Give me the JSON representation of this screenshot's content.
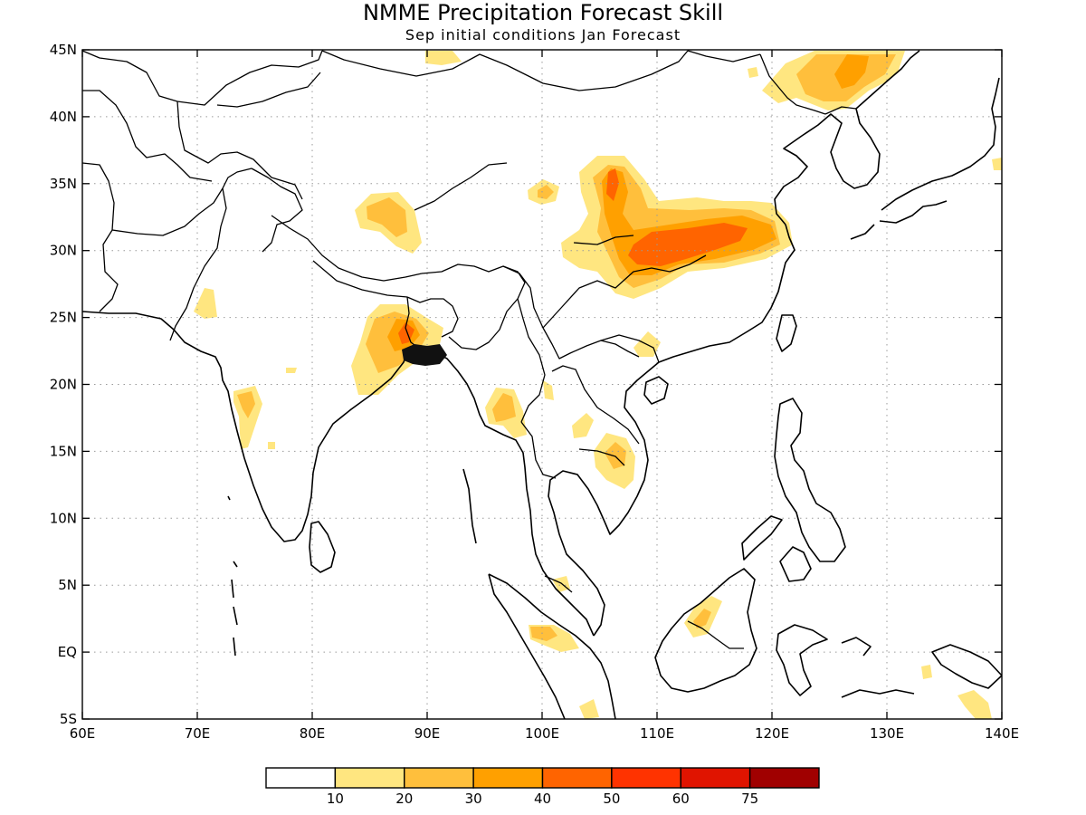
{
  "title": "NMME Precipitation Forecast Skill",
  "subtitle": "Sep initial conditions  Jan Forecast",
  "map": {
    "lon_range": [
      60,
      140
    ],
    "lat_range": [
      -5,
      45
    ],
    "x_ticks": [
      {
        "lon": 60,
        "label": "60E"
      },
      {
        "lon": 70,
        "label": "70E"
      },
      {
        "lon": 80,
        "label": "80E"
      },
      {
        "lon": 90,
        "label": "90E"
      },
      {
        "lon": 100,
        "label": "100E"
      },
      {
        "lon": 110,
        "label": "110E"
      },
      {
        "lon": 120,
        "label": "120E"
      },
      {
        "lon": 130,
        "label": "130E"
      },
      {
        "lon": 140,
        "label": "140E"
      }
    ],
    "y_ticks": [
      {
        "lat": 45,
        "label": "45N"
      },
      {
        "lat": 40,
        "label": "40N"
      },
      {
        "lat": 35,
        "label": "35N"
      },
      {
        "lat": 30,
        "label": "30N"
      },
      {
        "lat": 25,
        "label": "25N"
      },
      {
        "lat": 20,
        "label": "20N"
      },
      {
        "lat": 15,
        "label": "15N"
      },
      {
        "lat": 10,
        "label": "10N"
      },
      {
        "lat": 5,
        "label": "5N"
      },
      {
        "lat": 0,
        "label": "EQ"
      },
      {
        "lat": -5,
        "label": "5S"
      }
    ],
    "grid": "dotted",
    "skill_regions": [
      {
        "name": "central-china",
        "lon": 109,
        "lat": 31,
        "level": 30
      },
      {
        "name": "central-china-core",
        "lon": 111,
        "lat": 30.2,
        "level": 40
      },
      {
        "name": "shaanxi-peak",
        "lon": 105.8,
        "lat": 34.8,
        "level": 40
      },
      {
        "name": "bangladesh",
        "lon": 88.5,
        "lat": 23.5,
        "level": 40
      },
      {
        "name": "tibet",
        "lon": 87.5,
        "lat": 32.5,
        "level": 20
      },
      {
        "name": "northeast-china",
        "lon": 127,
        "lat": 43.5,
        "level": 20
      },
      {
        "name": "myanmar",
        "lon": 96,
        "lat": 18,
        "level": 20
      },
      {
        "name": "laos-cambodia",
        "lon": 105,
        "lat": 14.5,
        "level": 20
      },
      {
        "name": "western-india",
        "lon": 73.5,
        "lat": 18,
        "level": 20
      },
      {
        "name": "sumatra",
        "lon": 100.5,
        "lat": 1.3,
        "level": 20
      },
      {
        "name": "borneo",
        "lon": 113,
        "lat": 2.5,
        "level": 10
      }
    ]
  },
  "colorbar": {
    "colors": [
      "#ffffff",
      "#ffe680",
      "#ffbf3c",
      "#ffa000",
      "#ff6400",
      "#ff3300",
      "#e01400",
      "#a00000"
    ],
    "labels": [
      "10",
      "20",
      "30",
      "40",
      "50",
      "60",
      "75"
    ]
  }
}
